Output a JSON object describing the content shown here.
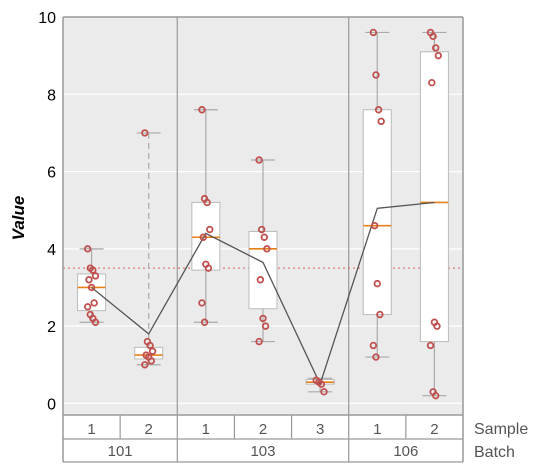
{
  "chart_data": {
    "type": "boxplot",
    "ylabel": "Value",
    "ylim": [
      -0.3,
      10
    ],
    "yticks": [
      0,
      2,
      4,
      6,
      8,
      10
    ],
    "grid": true,
    "reference_line": 3.5,
    "row_labels": [
      "Sample",
      "Batch"
    ],
    "batches": [
      {
        "label": "101",
        "samples": [
          "1",
          "2"
        ]
      },
      {
        "label": "103",
        "samples": [
          "1",
          "2",
          "3"
        ]
      },
      {
        "label": "106",
        "samples": [
          "1",
          "2"
        ]
      }
    ],
    "groups": [
      {
        "batch": "101",
        "sample": "1",
        "q1": 2.4,
        "median": 3.0,
        "q3": 3.35,
        "whisker_low": 2.1,
        "whisker_high": 4.0,
        "whisker_style": "solid",
        "points": [
          4.0,
          3.5,
          3.45,
          3.3,
          3.2,
          3.0,
          2.6,
          2.5,
          2.3,
          2.2,
          2.1
        ]
      },
      {
        "batch": "101",
        "sample": "2",
        "q1": 1.15,
        "median": 1.25,
        "q3": 1.45,
        "whisker_low": 1.0,
        "whisker_high": 7.0,
        "whisker_style": "dashed",
        "points": [
          7.0,
          1.6,
          1.5,
          1.35,
          1.25,
          1.2,
          1.1,
          1.0
        ]
      },
      {
        "batch": "103",
        "sample": "1",
        "q1": 3.45,
        "median": 4.3,
        "q3": 5.2,
        "whisker_low": 2.1,
        "whisker_high": 7.6,
        "whisker_style": "solid",
        "points": [
          7.6,
          5.3,
          5.2,
          4.5,
          4.3,
          3.6,
          3.5,
          2.6,
          2.1
        ]
      },
      {
        "batch": "103",
        "sample": "2",
        "q1": 2.45,
        "median": 4.0,
        "q3": 4.45,
        "whisker_low": 1.6,
        "whisker_high": 6.3,
        "whisker_style": "solid",
        "points": [
          6.3,
          4.5,
          4.3,
          4.0,
          3.2,
          2.2,
          2.0,
          1.6
        ]
      },
      {
        "batch": "103",
        "sample": "3",
        "q1": 0.5,
        "median": 0.55,
        "q3": 0.62,
        "whisker_low": 0.3,
        "whisker_high": 0.65,
        "whisker_style": "solid",
        "points": [
          0.6,
          0.55,
          0.5,
          0.3
        ]
      },
      {
        "batch": "106",
        "sample": "1",
        "q1": 2.3,
        "median": 4.6,
        "q3": 7.6,
        "whisker_low": 1.2,
        "whisker_high": 9.6,
        "whisker_style": "solid",
        "points": [
          9.6,
          8.5,
          7.6,
          7.3,
          4.6,
          3.1,
          2.3,
          1.5,
          1.2
        ]
      },
      {
        "batch": "106",
        "sample": "2",
        "q1": 1.6,
        "median": 5.2,
        "q3": 9.1,
        "whisker_low": 0.2,
        "whisker_high": 9.6,
        "whisker_style": "solid",
        "points": [
          9.6,
          9.5,
          9.2,
          9.0,
          8.3,
          2.1,
          2.0,
          1.5,
          0.3,
          0.2
        ]
      }
    ],
    "mean_line": [
      3.0,
      1.8,
      4.4,
      3.65,
      0.5,
      5.05,
      5.2
    ]
  },
  "colors": {
    "panel_bg": "#ebebeb",
    "grid": "#ffffff",
    "box_fill": "#ffffff",
    "box_stroke": "#bbbbbb",
    "whisker": "#aaaaaa",
    "median": "#e8801a",
    "point": "#c0504d",
    "mean_line": "#555555",
    "reference_line": "#e06060",
    "axis": "#999999",
    "label_text": "#555555"
  }
}
